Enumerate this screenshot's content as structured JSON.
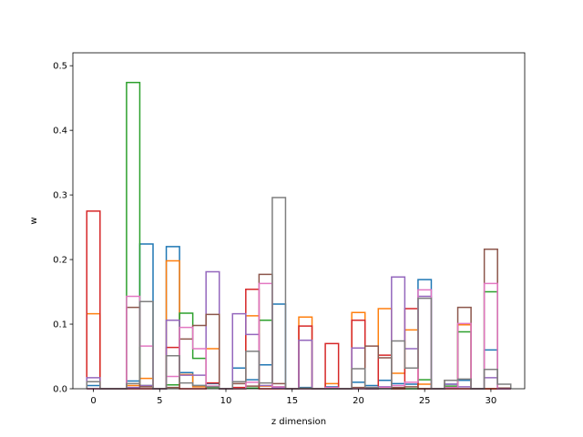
{
  "chart_data": {
    "type": "step",
    "xlabel": "z dimension",
    "ylabel": "w",
    "xlim": [
      -1.55,
      32.55
    ],
    "ylim": [
      0,
      0.52
    ],
    "xticks": [
      0,
      5,
      10,
      15,
      20,
      25,
      30
    ],
    "yticks": [
      0.0,
      0.1,
      0.2,
      0.3,
      0.4,
      0.5
    ],
    "grid": false,
    "legend": "none",
    "x": [
      0,
      1,
      2,
      3,
      4,
      5,
      6,
      7,
      8,
      9,
      10,
      11,
      12,
      13,
      14,
      15,
      16,
      17,
      18,
      19,
      20,
      21,
      22,
      23,
      24,
      25,
      26,
      27,
      28,
      29,
      30,
      31
    ],
    "series": [
      {
        "color": "#1f77b4",
        "values": [
          0.005,
          0,
          0,
          0.012,
          0.224,
          0,
          0.22,
          0.025,
          0.005,
          0.008,
          0,
          0.032,
          0.014,
          0.037,
          0.131,
          0,
          0.002,
          0,
          0.003,
          0,
          0.01,
          0.005,
          0.013,
          0.008,
          0.007,
          0.169,
          0,
          0.007,
          0.013,
          0,
          0.06,
          0
        ]
      },
      {
        "color": "#ff7f0e",
        "values": [
          0.116,
          0,
          0,
          0.005,
          0.016,
          0,
          0.198,
          0.022,
          0.003,
          0.062,
          0,
          0,
          0.113,
          0.004,
          0.002,
          0,
          0.111,
          0,
          0.008,
          0,
          0.118,
          0,
          0.124,
          0.024,
          0.091,
          0.007,
          0,
          0.002,
          0.099,
          0,
          0,
          0
        ]
      },
      {
        "color": "#2ca02c",
        "values": [
          0,
          0,
          0,
          0.474,
          0.005,
          0,
          0.006,
          0.117,
          0.047,
          0.002,
          0,
          0,
          0.001,
          0.106,
          0.003,
          0,
          0,
          0,
          0,
          0,
          0,
          0,
          0.001,
          0,
          0,
          0.014,
          0,
          0.004,
          0.088,
          0,
          0.15,
          0
        ]
      },
      {
        "color": "#d62728",
        "values": [
          0.275,
          0,
          0,
          0,
          0,
          0,
          0.064,
          0,
          0,
          0.009,
          0,
          0.002,
          0.154,
          0,
          0,
          0,
          0.097,
          0,
          0.07,
          0,
          0.106,
          0,
          0.052,
          0,
          0.124,
          0,
          0,
          0,
          0,
          0,
          0,
          0
        ]
      },
      {
        "color": "#9467bd",
        "values": [
          0.017,
          0,
          0,
          0.002,
          0.005,
          0,
          0.106,
          0.021,
          0.021,
          0.181,
          0,
          0.116,
          0.084,
          0.005,
          0.001,
          0,
          0.075,
          0,
          0.002,
          0,
          0.063,
          0,
          0.003,
          0.173,
          0.062,
          0.143,
          0,
          0.007,
          0.003,
          0,
          0.017,
          0
        ]
      },
      {
        "color": "#8c564b",
        "values": [
          0,
          0,
          0,
          0.126,
          0.003,
          0,
          0.002,
          0.077,
          0.098,
          0.115,
          0,
          0.008,
          0.004,
          0.177,
          0.008,
          0,
          0,
          0,
          0,
          0,
          0.002,
          0.066,
          0.048,
          0.002,
          0.003,
          0,
          0,
          0.013,
          0.126,
          0,
          0.216,
          0.001
        ]
      },
      {
        "color": "#e377c2",
        "values": [
          0,
          0,
          0,
          0.143,
          0.066,
          0,
          0.019,
          0.095,
          0.062,
          0.004,
          0,
          0,
          0.01,
          0.163,
          0.003,
          0,
          0,
          0,
          0.002,
          0,
          0,
          0.002,
          0.002,
          0.005,
          0.01,
          0.153,
          0,
          0.002,
          0.101,
          0,
          0.163,
          0
        ]
      },
      {
        "color": "#7f7f7f",
        "values": [
          0.011,
          0,
          0,
          0.008,
          0.135,
          0,
          0.051,
          0.009,
          0.005,
          0.003,
          0,
          0.011,
          0.058,
          0.009,
          0.296,
          0,
          0.001,
          0,
          0,
          0,
          0.031,
          0.002,
          0,
          0.074,
          0.032,
          0.14,
          0,
          0.013,
          0.015,
          0,
          0.03,
          0.007
        ]
      }
    ]
  }
}
